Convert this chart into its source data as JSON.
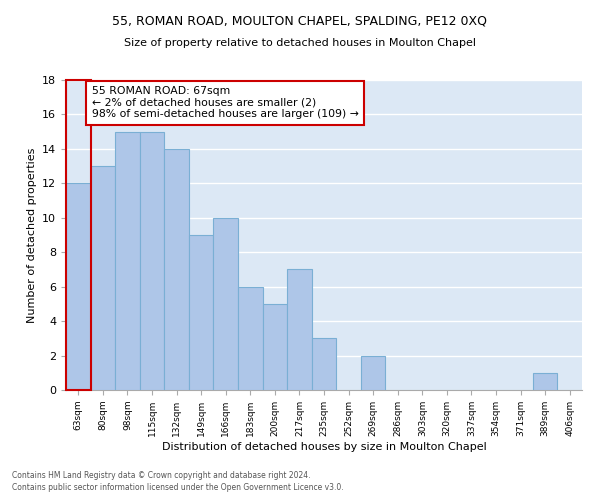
{
  "title": "55, ROMAN ROAD, MOULTON CHAPEL, SPALDING, PE12 0XQ",
  "subtitle": "Size of property relative to detached houses in Moulton Chapel",
  "xlabel": "Distribution of detached houses by size in Moulton Chapel",
  "ylabel": "Number of detached properties",
  "footnote1": "Contains HM Land Registry data © Crown copyright and database right 2024.",
  "footnote2": "Contains public sector information licensed under the Open Government Licence v3.0.",
  "bins": [
    "63sqm",
    "80sqm",
    "98sqm",
    "115sqm",
    "132sqm",
    "149sqm",
    "166sqm",
    "183sqm",
    "200sqm",
    "217sqm",
    "235sqm",
    "252sqm",
    "269sqm",
    "286sqm",
    "303sqm",
    "320sqm",
    "337sqm",
    "354sqm",
    "371sqm",
    "389sqm",
    "406sqm"
  ],
  "values": [
    12,
    13,
    15,
    15,
    14,
    9,
    10,
    6,
    5,
    7,
    3,
    0,
    2,
    0,
    0,
    0,
    0,
    0,
    0,
    1,
    0
  ],
  "bar_color": "#aec6e8",
  "bar_edge_color": "#7aafd4",
  "highlight_color": "#cc0000",
  "annotation_title": "55 ROMAN ROAD: 67sqm",
  "annotation_line1": "← 2% of detached houses are smaller (2)",
  "annotation_line2": "98% of semi-detached houses are larger (109) →",
  "annotation_box_color": "#ffffff",
  "annotation_border_color": "#cc0000",
  "bg_color": "#dce8f5",
  "ylim": [
    0,
    18
  ],
  "yticks": [
    0,
    2,
    4,
    6,
    8,
    10,
    12,
    14,
    16,
    18
  ]
}
